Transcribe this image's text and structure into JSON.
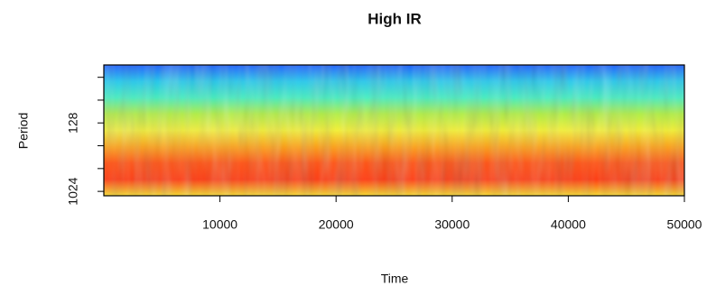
{
  "chart_data": {
    "type": "heatmap",
    "title": "High IR",
    "xlabel": "Time",
    "ylabel": "Period",
    "xlim": [
      0,
      50000
    ],
    "xticks": [
      10000,
      20000,
      30000,
      40000,
      50000
    ],
    "ylim": [
      22,
      1170
    ],
    "ylog": true,
    "yreversed": true,
    "yticks": [
      {
        "value": 32,
        "label": null
      },
      {
        "value": 64,
        "label": null
      },
      128,
      {
        "value": 256,
        "label": null
      },
      {
        "value": 512,
        "label": null
      },
      1024
    ],
    "colormap": [
      "#1a5cff",
      "#22c8ee",
      "#40f0c0",
      "#b0f040",
      "#f4f030",
      "#ffa010",
      "#ff5010",
      "#ff3a10",
      "#f5d828"
    ]
  }
}
